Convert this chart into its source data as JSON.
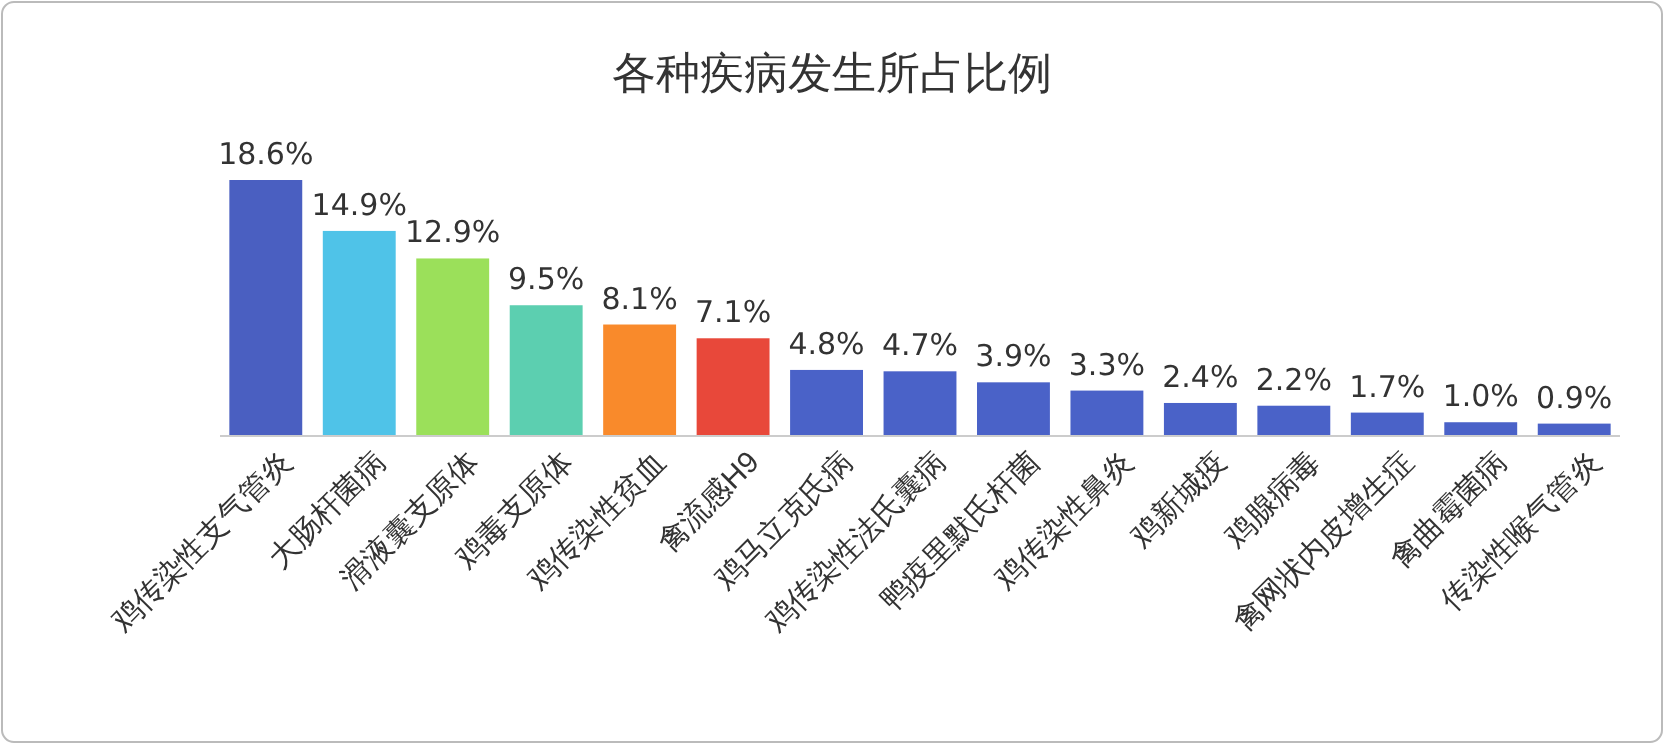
{
  "chart_data": {
    "type": "bar",
    "title": "各种疾病发生所占比例",
    "categories": [
      "鸡传染性支气管炎",
      "大肠杆菌病",
      "滑液囊支原体",
      "鸡毒支原体",
      "鸡传染性贫血",
      "禽流感H9",
      "鸡马立克氏病",
      "鸡传染性法氏囊病",
      "鸭疫里默氏杆菌",
      "鸡传染性鼻炎",
      "鸡新城疫",
      "鸡腺病毒",
      "禽网状内皮增生症",
      "禽曲霉菌病",
      "传染性喉气管炎"
    ],
    "values": [
      18.6,
      14.9,
      12.9,
      9.5,
      8.1,
      7.1,
      4.8,
      4.7,
      3.9,
      3.3,
      2.4,
      2.2,
      1.7,
      1.0,
      0.9
    ],
    "value_labels": [
      "18.6%",
      "14.9%",
      "12.9%",
      "9.5%",
      "8.1%",
      "7.1%",
      "4.8%",
      "4.7%",
      "3.9%",
      "3.3%",
      "2.4%",
      "2.2%",
      "1.7%",
      "1.0%",
      "0.9%"
    ],
    "colors": [
      "#4a5fc1",
      "#4fc3e8",
      "#9be05a",
      "#5ccfb0",
      "#f98a2b",
      "#e8483a",
      "#4a62c8",
      "#4a62c8",
      "#4a62c8",
      "#4a62c8",
      "#4a62c8",
      "#4a62c8",
      "#4a62c8",
      "#4a62c8",
      "#4a62c8"
    ]
  }
}
